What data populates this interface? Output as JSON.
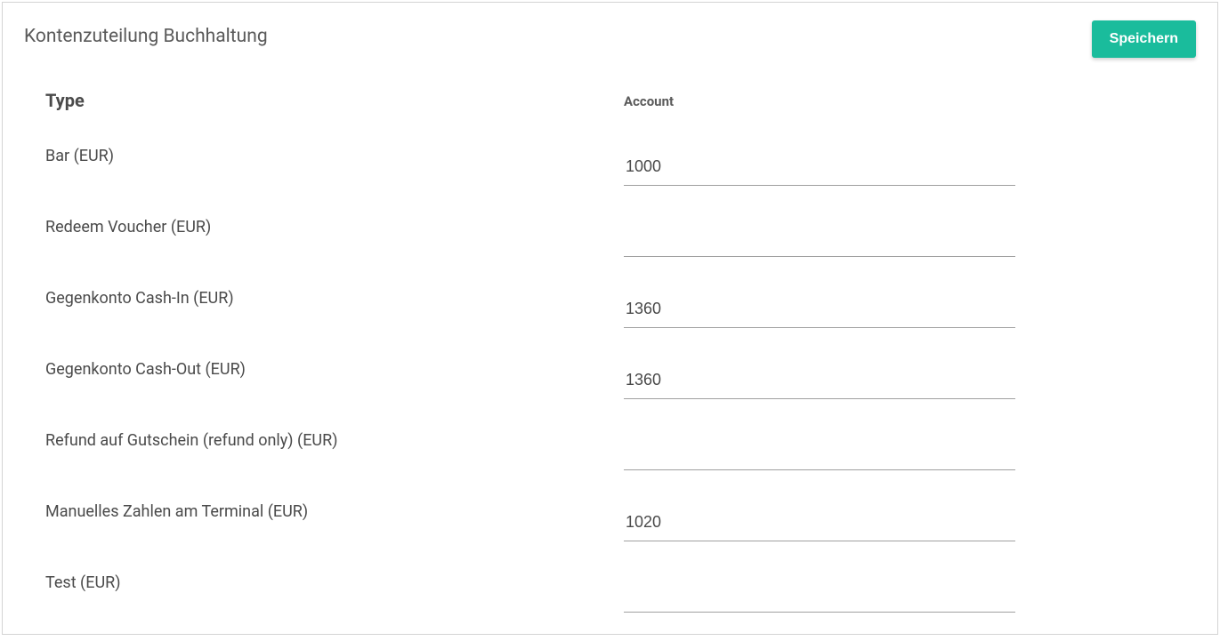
{
  "panel": {
    "title": "Kontenzuteilung Buchhaltung",
    "save_label": "Speichern"
  },
  "headers": {
    "type": "Type",
    "account": "Account"
  },
  "rows": [
    {
      "type": "Bar (EUR)",
      "account": "1000"
    },
    {
      "type": "Redeem Voucher (EUR)",
      "account": ""
    },
    {
      "type": "Gegenkonto Cash-In (EUR)",
      "account": "1360"
    },
    {
      "type": "Gegenkonto Cash-Out (EUR)",
      "account": "1360"
    },
    {
      "type": "Refund auf Gutschein (refund only) (EUR)",
      "account": ""
    },
    {
      "type": "Manuelles Zahlen am Terminal (EUR)",
      "account": "1020"
    },
    {
      "type": "Test (EUR)",
      "account": ""
    }
  ],
  "colors": {
    "accent": "#1abc9c",
    "border": "#d4d4d4",
    "text_primary": "#4a4a4a",
    "text_secondary": "#5a5a5a",
    "input_underline": "#a0a0a0",
    "button_text": "#ffffff",
    "background": "#ffffff"
  }
}
